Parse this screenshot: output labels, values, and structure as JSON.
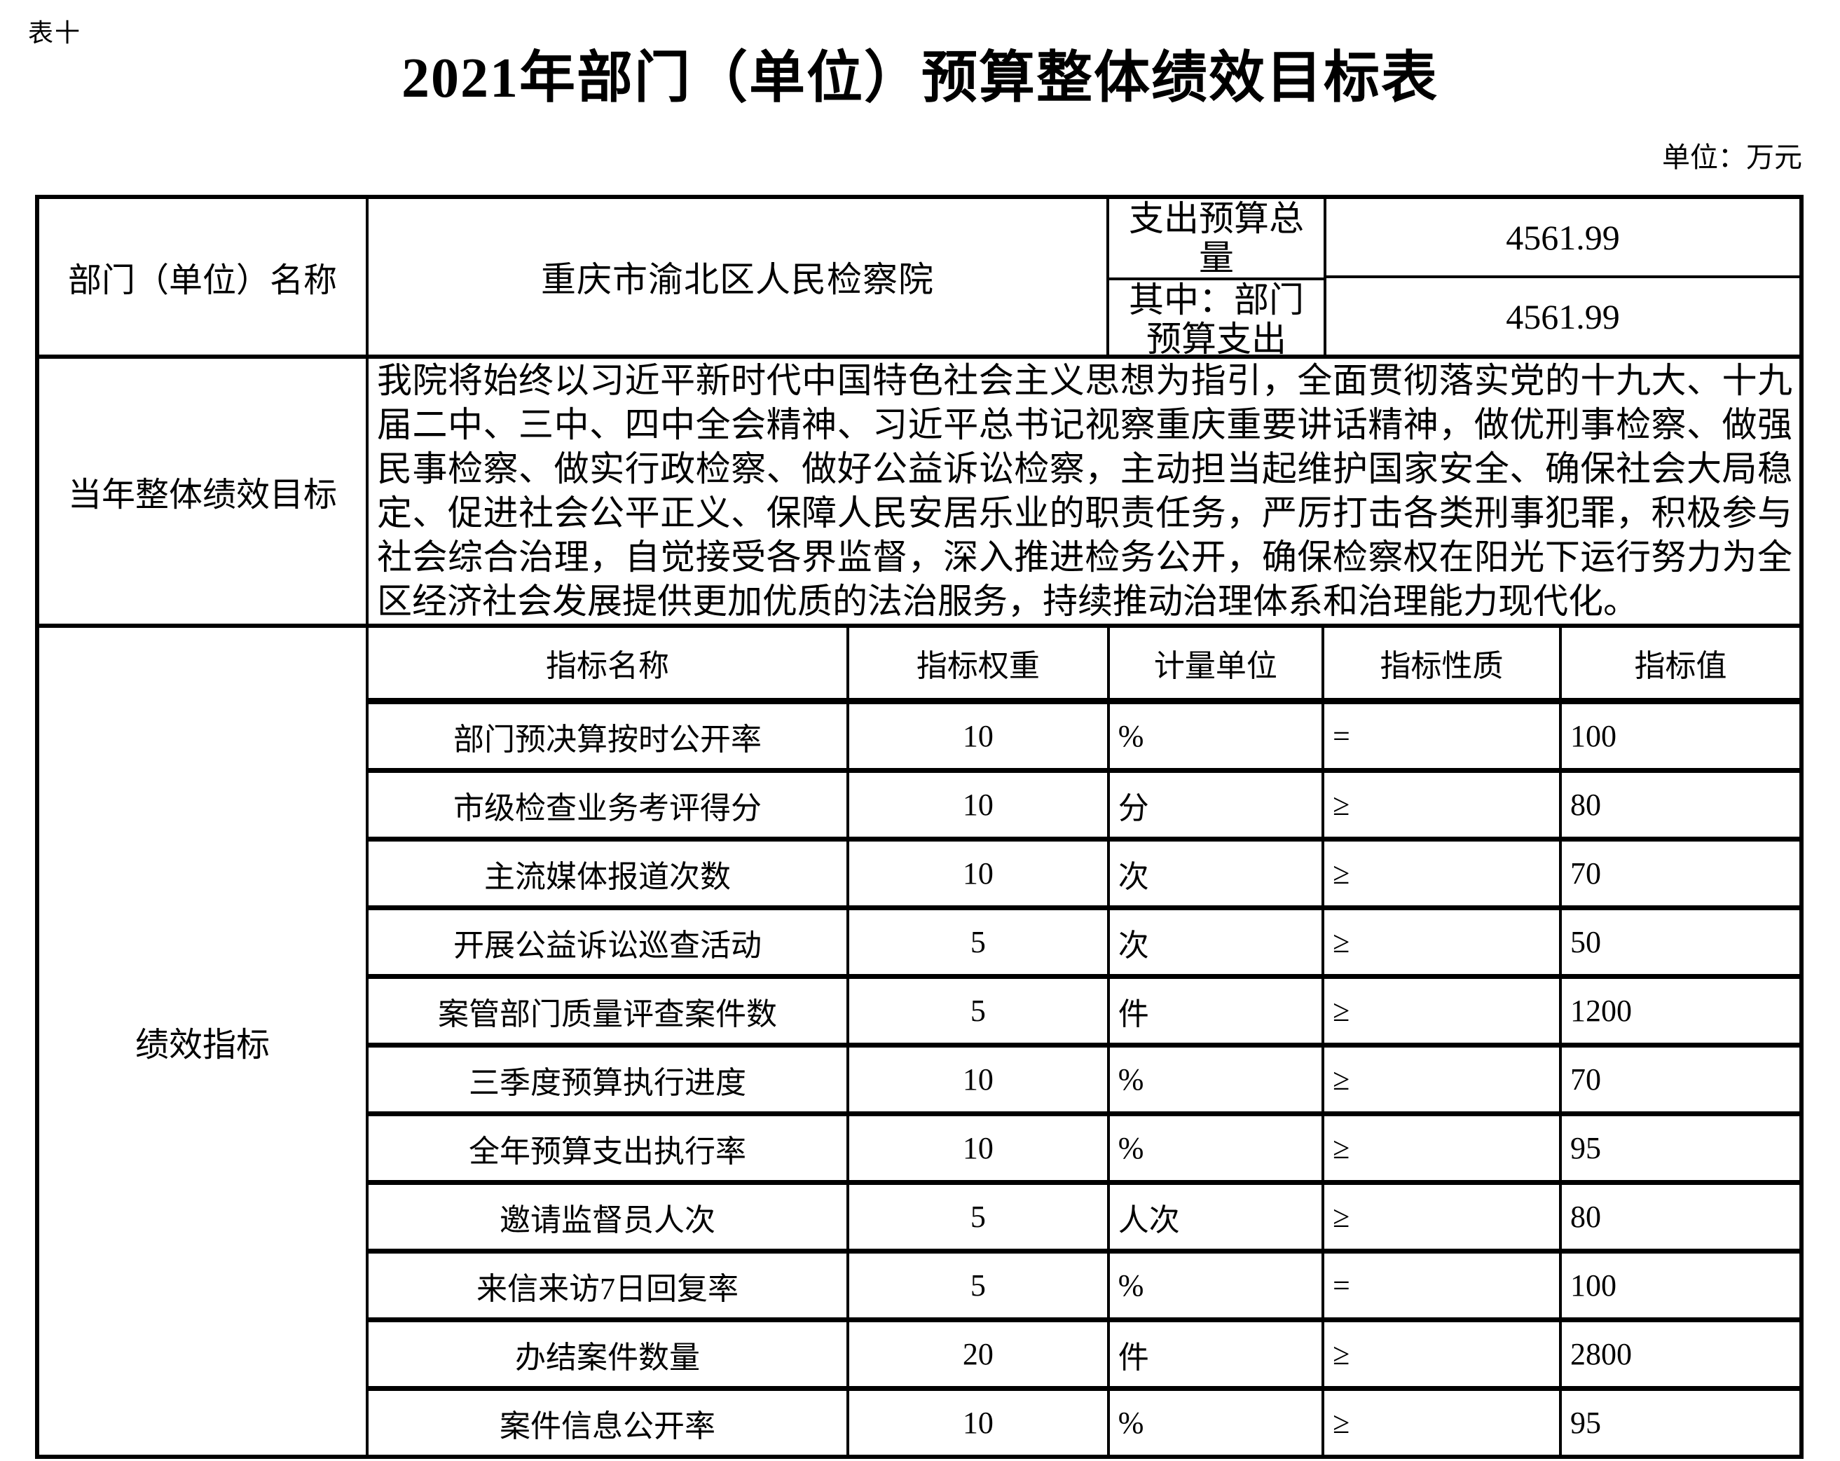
{
  "page": {
    "table_tag": "表十",
    "title": "2021年部门（单位）预算整体绩效目标表",
    "unit_note": "单位：万元"
  },
  "info": {
    "dept_label": "部门（单位）名称",
    "dept_name": "重庆市渝北区人民检察院",
    "budget_total_label": "支出预算总量",
    "budget_total_value": "4561.99",
    "budget_dept_label": "其中：部门预算支出",
    "budget_dept_value": "4561.99"
  },
  "goal": {
    "label": "当年整体绩效目标",
    "text": "我院将始终以习近平新时代中国特色社会主义思想为指引，全面贯彻落实党的十九大、十九届二中、三中、四中全会精神、习近平总书记视察重庆重要讲话精神，做优刑事检察、做强民事检察、做实行政检察、做好公益诉讼检察，主动担当起维护国家安全、确保社会大局稳定、促进社会公平正义、保障人民安居乐业的职责任务，严厉打击各类刑事犯罪，积极参与社会综合治理，自觉接受各界监督，深入推进检务公开，确保检察权在阳光下运行努力为全区经济社会发展提供更加优质的法治服务，持续推动治理体系和治理能力现代化。"
  },
  "indicators": {
    "label": "绩效指标",
    "headers": [
      "指标名称",
      "指标权重",
      "计量单位",
      "指标性质",
      "指标值"
    ],
    "rows": [
      {
        "name": "部门预决算按时公开率",
        "weight": "10",
        "unit": "%",
        "nature": "=",
        "value": "100"
      },
      {
        "name": "市级检查业务考评得分",
        "weight": "10",
        "unit": "分",
        "nature": "≥",
        "value": "80"
      },
      {
        "name": "主流媒体报道次数",
        "weight": "10",
        "unit": "次",
        "nature": "≥",
        "value": "70"
      },
      {
        "name": "开展公益诉讼巡查活动",
        "weight": "5",
        "unit": "次",
        "nature": "≥",
        "value": "50"
      },
      {
        "name": "案管部门质量评查案件数",
        "weight": "5",
        "unit": "件",
        "nature": "≥",
        "value": "1200"
      },
      {
        "name": "三季度预算执行进度",
        "weight": "10",
        "unit": "%",
        "nature": "≥",
        "value": "70"
      },
      {
        "name": "全年预算支出执行率",
        "weight": "10",
        "unit": "%",
        "nature": "≥",
        "value": "95"
      },
      {
        "name": "邀请监督员人次",
        "weight": "5",
        "unit": "人次",
        "nature": "≥",
        "value": "80"
      },
      {
        "name": "来信来访7日回复率",
        "weight": "5",
        "unit": "%",
        "nature": "=",
        "value": "100"
      },
      {
        "name": "办结案件数量",
        "weight": "20",
        "unit": "件",
        "nature": "≥",
        "value": "2800"
      },
      {
        "name": "案件信息公开率",
        "weight": "10",
        "unit": "%",
        "nature": "≥",
        "value": "95"
      }
    ]
  }
}
